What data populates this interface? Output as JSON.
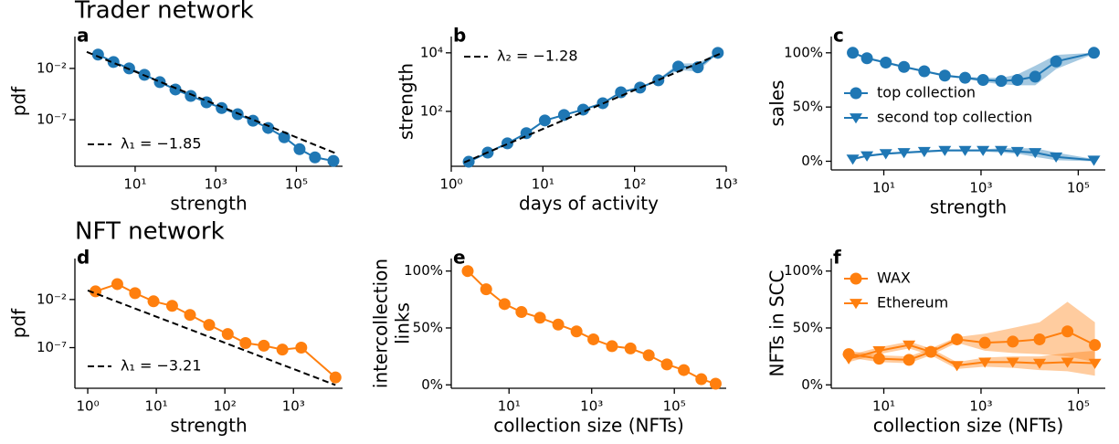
{
  "sections": [
    "Trader network",
    "NFT network"
  ],
  "chart_data": [
    {
      "type": "line",
      "panel_label": "a",
      "xlabel": "strength",
      "ylabel": "pdf",
      "xscale": "log",
      "yscale": "log",
      "xlim": [
        0.32,
        1400000
      ],
      "ylim": [
        3e-12,
        12.6
      ],
      "xticks": [
        {
          "value": 10,
          "label": "10¹"
        },
        {
          "value": 1000,
          "label": "10³"
        },
        {
          "value": 100000,
          "label": "10⁵"
        }
      ],
      "yticks": [
        {
          "value": 0.01,
          "label": "10⁻²"
        },
        {
          "value": 1e-07,
          "label": "10⁻⁷"
        }
      ],
      "legend": "lower left",
      "series": [
        {
          "color": "#1f77b4",
          "marker": "circle",
          "x": [
            1.2,
            2.9,
            7.1,
            17,
            41,
            100,
            240,
            590,
            1400,
            3500,
            8400,
            20000,
            50000,
            120000,
            290000,
            830000
          ],
          "values": [
            0.22,
            0.042,
            0.01,
            0.0024,
            0.00046,
            8.9e-05,
            2.1e-05,
            5e-06,
            1.4e-06,
            3.5e-07,
            8.1e-08,
            1.6e-08,
            2e-09,
            1.4e-10,
            2.2e-11,
            1e-11
          ]
        },
        {
          "name": "λ₁ = −1.85",
          "color": "#000000",
          "dash": true,
          "x": [
            0.63,
            1000000
          ],
          "values": [
            0.4,
            5e-11
          ]
        }
      ]
    },
    {
      "type": "line",
      "panel_label": "b",
      "xlabel": "days of activity",
      "ylabel": "strength",
      "xscale": "log",
      "yscale": "log",
      "xlim": [
        1,
        1000
      ],
      "ylim": [
        1.33,
        36000
      ],
      "xticks": [
        {
          "value": 1,
          "label": "10⁰"
        },
        {
          "value": 10,
          "label": "10¹"
        },
        {
          "value": 100,
          "label": "10²"
        },
        {
          "value": 1000,
          "label": "10³"
        }
      ],
      "yticks": [
        {
          "value": 100,
          "label": "10²"
        },
        {
          "value": 10000,
          "label": "10⁴"
        }
      ],
      "legend": "upper left",
      "series": [
        {
          "color": "#1f77b4",
          "marker": "circle",
          "x": [
            1.55,
            2.5,
            4.1,
            6.6,
            10.5,
            17,
            27.5,
            45,
            71,
            115,
            182,
            300,
            490,
            810
          ],
          "values": [
            1.9,
            3.9,
            8.1,
            18,
            49,
            75,
            115,
            190,
            450,
            650,
            1150,
            3400,
            3200,
            10000
          ],
          "lower": [
            1.8,
            3.7,
            7.7,
            17,
            46,
            71,
            109,
            180,
            425,
            610,
            1050,
            2600,
            2300,
            9500
          ],
          "upper": [
            2.0,
            4.1,
            8.5,
            19,
            52,
            79,
            121,
            200,
            475,
            690,
            1250,
            4300,
            4400,
            10500
          ]
        },
        {
          "name": "λ₂ = −1.28",
          "color": "#000000",
          "dash": true,
          "x": [
            1.38,
            910
          ],
          "values": [
            1.8,
            10000
          ]
        }
      ]
    },
    {
      "type": "line",
      "panel_label": "c",
      "xlabel": "strength",
      "ylabel": "sales",
      "xscale": "log",
      "yscale": "linear",
      "xlim": [
        0.83,
        360000
      ],
      "ylim": [
        -8,
        115
      ],
      "xticks": [
        {
          "value": 10,
          "label": "10¹"
        },
        {
          "value": 1000,
          "label": "10³"
        },
        {
          "value": 100000,
          "label": "10⁵"
        }
      ],
      "yticks": [
        {
          "value": 0,
          "label": "0%"
        },
        {
          "value": 50,
          "label": "50%"
        },
        {
          "value": 100,
          "label": "100%"
        }
      ],
      "legend": "center left",
      "series": [
        {
          "name": "top collection",
          "color": "#1f77b4",
          "marker": "circle",
          "x": [
            2.3,
            4.5,
            11,
            26,
            68,
            180,
            470,
            1100,
            2600,
            5600,
            13000,
            35000,
            210000
          ],
          "values": [
            100,
            95,
            91,
            87,
            83,
            79,
            77,
            75,
            74,
            75,
            78,
            92,
            100
          ],
          "lower": [
            99,
            94,
            90,
            86,
            82,
            78,
            76,
            73,
            71,
            70,
            70,
            85,
            99
          ],
          "upper": [
            100,
            96,
            92,
            88,
            84,
            80,
            78,
            77,
            77,
            80,
            88,
            98,
            100
          ]
        },
        {
          "name": "second top collection",
          "color": "#1f77b4",
          "marker": "triangle",
          "x": [
            2.3,
            4.5,
            11,
            26,
            68,
            180,
            470,
            1100,
            2600,
            5600,
            13000,
            35000,
            210000
          ],
          "values": [
            2,
            5,
            7,
            8,
            9,
            10,
            10,
            10,
            10,
            9,
            8,
            4,
            1
          ],
          "lower": [
            1,
            4,
            6,
            7,
            8,
            9,
            9,
            9,
            8,
            7,
            4,
            1,
            0
          ],
          "upper": [
            3,
            6,
            8,
            9,
            10,
            11,
            11,
            11,
            12,
            12,
            12,
            8,
            2
          ]
        }
      ]
    },
    {
      "type": "line",
      "panel_label": "d",
      "xlabel": "strength",
      "ylabel": "pdf",
      "xscale": "log",
      "yscale": "log",
      "xlim": [
        0.65,
        5200
      ],
      "ylim": [
        6e-12,
        180
      ],
      "xticks": [
        {
          "value": 1,
          "label": "10⁰"
        },
        {
          "value": 10,
          "label": "10¹"
        },
        {
          "value": 100,
          "label": "10²"
        },
        {
          "value": 1000,
          "label": "10³"
        }
      ],
      "yticks": [
        {
          "value": 0.01,
          "label": "10⁻²"
        },
        {
          "value": 1e-07,
          "label": "10⁻⁷"
        }
      ],
      "legend": "lower left",
      "series": [
        {
          "color": "#ff7f0e",
          "marker": "circle",
          "x": [
            1.3,
            2.7,
            4.9,
            9.1,
            17,
            31,
            59,
            110,
            200,
            370,
            690,
            1300,
            4100
          ],
          "values": [
            0.07,
            0.4,
            0.046,
            0.0065,
            0.0022,
            0.00025,
            2.3e-05,
            2.6e-06,
            3e-07,
            1.6e-07,
            6.3e-08,
            1e-07,
            8e-11
          ]
        },
        {
          "name": "λ₁ = −3.21",
          "color": "#000000",
          "dash": true,
          "x": [
            1,
            4100
          ],
          "values": [
            0.087,
            1.3e-11
          ]
        }
      ]
    },
    {
      "type": "line",
      "panel_label": "e",
      "xlabel": "collection size (NFTs)",
      "ylabel": [
        "intercollection",
        "links"
      ],
      "xscale": "log",
      "yscale": "linear",
      "xlim": [
        0.4,
        1800000
      ],
      "ylim": [
        -3,
        111
      ],
      "xticks": [
        {
          "value": 10,
          "label": "10¹"
        },
        {
          "value": 1000,
          "label": "10³"
        },
        {
          "value": 100000,
          "label": "10⁵"
        }
      ],
      "yticks": [
        {
          "value": 0,
          "label": "0%"
        },
        {
          "value": 50,
          "label": "50%"
        },
        {
          "value": 100,
          "label": "100%"
        }
      ],
      "series": [
        {
          "color": "#ff7f0e",
          "marker": "circle",
          "x": [
            1,
            2.8,
            7.8,
            20,
            56,
            155,
            430,
            1100,
            3100,
            8700,
            24000,
            66000,
            170000,
            450000,
            1000000
          ],
          "values": [
            100,
            84,
            71,
            64,
            59,
            53,
            47,
            40,
            34,
            32,
            26,
            18,
            13,
            5,
            1
          ]
        }
      ]
    },
    {
      "type": "line",
      "panel_label": "f",
      "xlabel": "collection size (NFTs)",
      "ylabel": "NFTs in SCC",
      "xscale": "log",
      "yscale": "linear",
      "xlim": [
        0.83,
        360000
      ],
      "ylim": [
        -3,
        111
      ],
      "xticks": [
        {
          "value": 10,
          "label": "10¹"
        },
        {
          "value": 1000,
          "label": "10³"
        },
        {
          "value": 100000,
          "label": "10⁵"
        }
      ],
      "yticks": [
        {
          "value": 0,
          "label": "0%"
        },
        {
          "value": 50,
          "label": "50%"
        },
        {
          "value": 100,
          "label": "100%"
        }
      ],
      "legend": "upper left",
      "series": [
        {
          "name": "WAX",
          "color": "#ff7f0e",
          "marker": "circle",
          "x": [
            1.9,
            8,
            33,
            93,
            320,
            1200,
            4500,
            16000,
            60000,
            220000
          ],
          "values": [
            27,
            23,
            22,
            29,
            40,
            37,
            38,
            40,
            47,
            35
          ],
          "lower": [
            24,
            20,
            19,
            26,
            37,
            30,
            28,
            27,
            25,
            20
          ],
          "upper": [
            30,
            26,
            25,
            32,
            42,
            45,
            50,
            55,
            73,
            55
          ]
        },
        {
          "name": "Ethereum",
          "color": "#ff7f0e",
          "marker": "triangle",
          "x": [
            1.9,
            8,
            33,
            93,
            320,
            1200,
            4500,
            16000,
            60000,
            220000
          ],
          "values": [
            23,
            30,
            35,
            29,
            17,
            20,
            20,
            19,
            20,
            19
          ],
          "lower": [
            20,
            27,
            32,
            26,
            14,
            16,
            15,
            13,
            12,
            8
          ],
          "upper": [
            26,
            33,
            38,
            32,
            20,
            24,
            25,
            25,
            28,
            30
          ]
        }
      ]
    }
  ]
}
